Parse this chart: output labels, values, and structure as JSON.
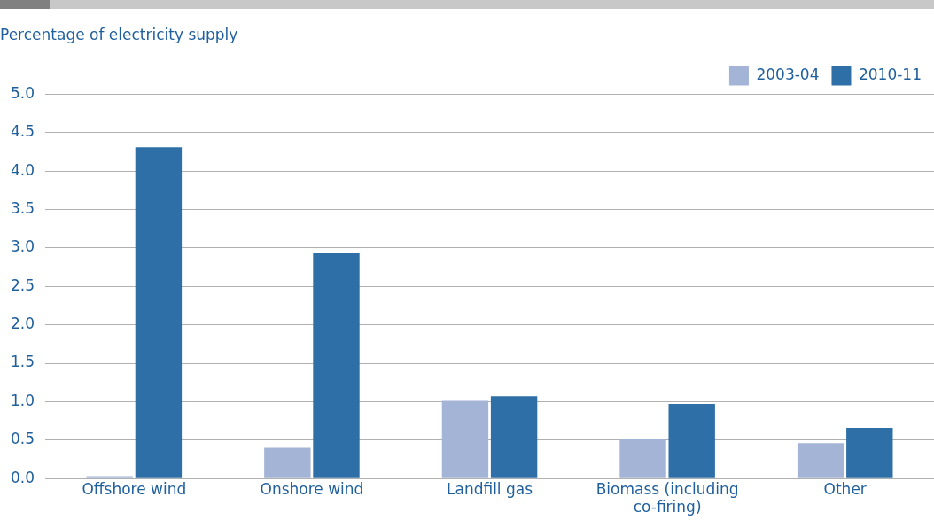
{
  "chart_data": {
    "type": "bar",
    "ylabel": "Percentage of electricity supply",
    "categories": [
      "Offshore wind",
      "Onshore wind",
      "Landfill gas",
      "Biomass (including co-firing)",
      "Other"
    ],
    "series": [
      {
        "name": "2003-04",
        "color": "#a3b4d6",
        "values": [
          0.03,
          0.4,
          1.01,
          0.52,
          0.46
        ]
      },
      {
        "name": "2010-11",
        "color": "#2e6fa7",
        "values": [
          4.31,
          2.93,
          1.07,
          0.97,
          0.66
        ]
      }
    ],
    "ylim": [
      0,
      5
    ],
    "yticks": [
      {
        "value": 0,
        "label": "0.0"
      },
      {
        "value": 0.5,
        "label": "0.5"
      },
      {
        "value": 1,
        "label": "1.0"
      },
      {
        "value": 1.5,
        "label": "1.5"
      },
      {
        "value": 2,
        "label": "2.0"
      },
      {
        "value": 2.5,
        "label": "2.5"
      },
      {
        "value": 3,
        "label": "3.0"
      },
      {
        "value": 3.5,
        "label": "3.5"
      },
      {
        "value": 4,
        "label": "4.0"
      },
      {
        "value": 4.5,
        "label": "4.5"
      },
      {
        "value": 5,
        "label": "5.0"
      }
    ],
    "grid": "y",
    "legend": "top right"
  }
}
